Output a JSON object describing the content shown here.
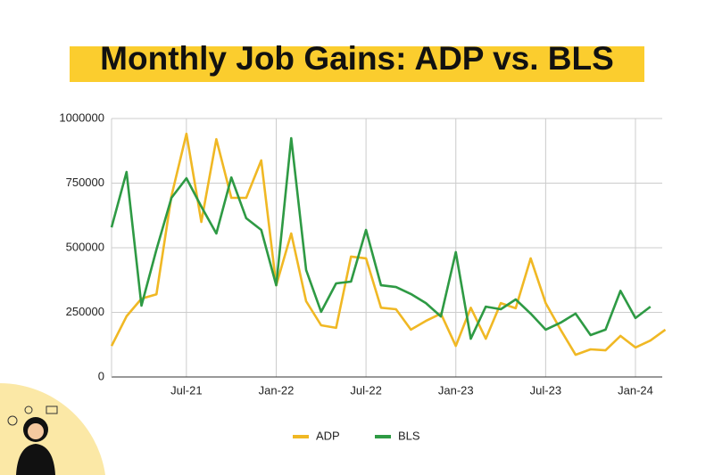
{
  "chart_data": {
    "type": "line",
    "title": "Monthly Job Gains: ADP vs. BLS",
    "categories": [
      null,
      null,
      null,
      null,
      null,
      "Jul-21",
      null,
      null,
      null,
      null,
      null,
      "Jan-22",
      null,
      null,
      null,
      null,
      null,
      "Jul-22",
      null,
      null,
      null,
      null,
      null,
      "Jan-23",
      null,
      null,
      null,
      null,
      null,
      "Jul-23",
      null,
      null,
      null,
      null,
      null,
      "Jan-24",
      null,
      null
    ],
    "series": [
      {
        "name": "ADP",
        "color": "#f0b824",
        "values": [
          120000,
          235000,
          303000,
          320000,
          700000,
          941000,
          600000,
          920000,
          693000,
          693000,
          838000,
          355000,
          555000,
          293000,
          200000,
          190000,
          466000,
          459000,
          268000,
          262000,
          183000,
          217000,
          245000,
          120000,
          268000,
          148000,
          286000,
          266000,
          459000,
          286000,
          183000,
          86000,
          107000,
          103000,
          159000,
          114000,
          141000,
          183000
        ]
      },
      {
        "name": "BLS",
        "color": "#2e9a44",
        "values": [
          579000,
          793000,
          276000,
          493000,
          693000,
          769000,
          659000,
          555000,
          772000,
          614000,
          569000,
          355000,
          924000,
          414000,
          252000,
          362000,
          369000,
          569000,
          355000,
          348000,
          321000,
          286000,
          234000,
          483000,
          148000,
          272000,
          262000,
          300000,
          245000,
          183000,
          210000,
          245000,
          162000,
          183000,
          333000,
          228000,
          272000,
          null
        ]
      }
    ],
    "ylim": [
      0,
      1000000
    ],
    "yticks": [
      0,
      250000,
      500000,
      750000,
      1000000
    ],
    "grid": true,
    "legend": "bottom"
  }
}
